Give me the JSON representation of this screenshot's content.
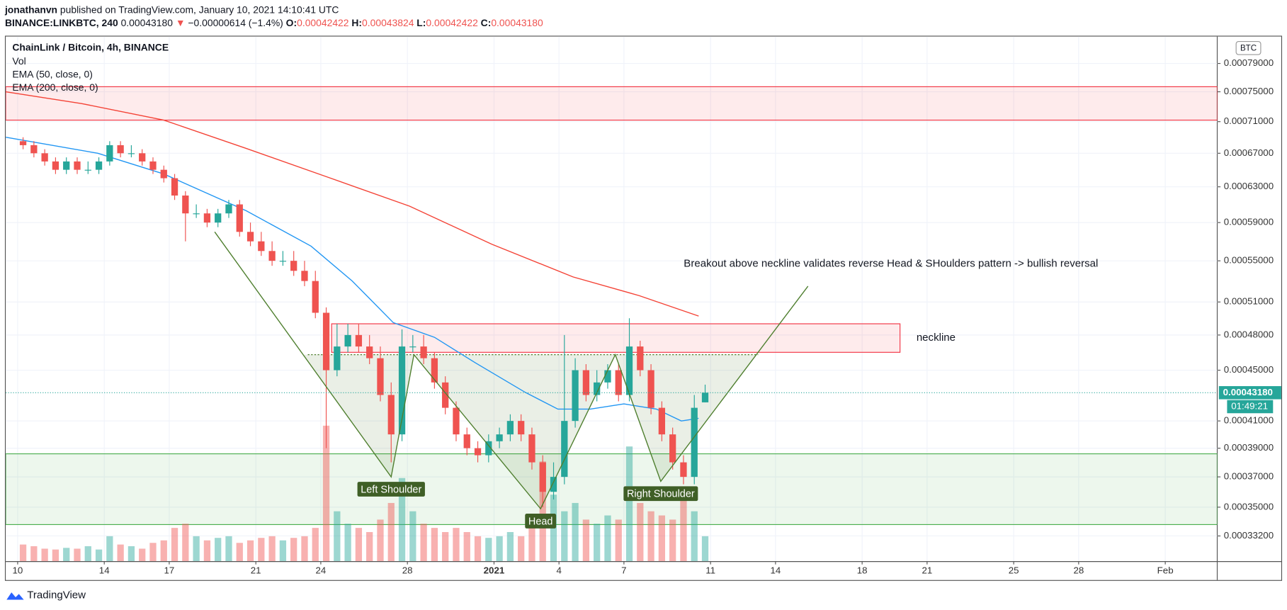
{
  "header": {
    "user": "jonathanvn",
    "published": "published on TradingView.com, January 10, 2021 14:10:41 UTC",
    "symbol": "BINANCE:LINKBTC, 240",
    "price": "0.00043180",
    "arrow": "▼",
    "change": "−0.00000614 (−1.4%)",
    "ohlc": [
      {
        "label": "O:",
        "value": "0.00042422"
      },
      {
        "label": "H:",
        "value": "0.00043824"
      },
      {
        "label": "L:",
        "value": "0.00042422"
      },
      {
        "label": "C:",
        "value": "0.00043180"
      }
    ]
  },
  "footer": {
    "brand": "TradingView"
  },
  "chart_data": {
    "type": "candlestick",
    "title": "ChainLink / Bitcoin, 4h, BINANCE",
    "log_scale": true,
    "grid": true,
    "up_color": "#26a69a",
    "down_color": "#ef5350",
    "currency": "BTC",
    "open": [
      0.000685,
      0.00068,
      0.00067,
      0.00066,
      0.00065,
      0.00066,
      0.00065,
      0.00065,
      0.00066,
      0.00068,
      0.00067,
      0.00067,
      0.00066,
      0.00065,
      0.00064,
      0.00062,
      0.0006,
      0.0006,
      0.00059,
      0.0006,
      0.00061,
      0.00058,
      0.00057,
      0.00056,
      0.00055,
      0.00055,
      0.00054,
      0.00053,
      0.0005,
      0.00045,
      0.00047,
      0.00048,
      0.00047,
      0.00046,
      0.00043,
      0.0004,
      0.00047,
      0.00047,
      0.00046,
      0.00044,
      0.00042,
      0.0004,
      0.00039,
      0.000385,
      0.000395,
      0.0004,
      0.00041,
      0.0004,
      0.00038,
      0.00036,
      0.00037,
      0.00041,
      0.00045,
      0.00043,
      0.00044,
      0.00045,
      0.00043,
      0.00047,
      0.00045,
      0.00042,
      0.0004,
      0.00038,
      0.00037,
      0.00042422
    ],
    "high": [
      0.00069,
      0.000685,
      0.000675,
      0.000665,
      0.000665,
      0.000665,
      0.00066,
      0.000665,
      0.000685,
      0.000685,
      0.00068,
      0.000675,
      0.000665,
      0.000655,
      0.000645,
      0.000625,
      0.00061,
      0.000605,
      0.000605,
      0.000615,
      0.000615,
      0.00059,
      0.00058,
      0.00057,
      0.00056,
      0.00056,
      0.00055,
      0.00054,
      0.000505,
      0.00049,
      0.00049,
      0.00049,
      0.00048,
      0.00047,
      0.00044,
      0.000485,
      0.00048,
      0.00048,
      0.000465,
      0.000445,
      0.000425,
      0.000405,
      0.000395,
      0.0004,
      0.000405,
      0.000415,
      0.000415,
      0.000405,
      0.000385,
      0.00038,
      0.00048,
      0.00046,
      0.000455,
      0.00045,
      0.000455,
      0.000455,
      0.000495,
      0.000475,
      0.000455,
      0.000425,
      0.000405,
      0.000385,
      0.00043,
      0.00043824
    ],
    "low": [
      0.000675,
      0.000665,
      0.000655,
      0.000645,
      0.000645,
      0.000645,
      0.000645,
      0.000645,
      0.000655,
      0.000665,
      0.000665,
      0.000655,
      0.000645,
      0.000635,
      0.000615,
      0.00057,
      0.000595,
      0.000585,
      0.000585,
      0.000595,
      0.000575,
      0.000565,
      0.000555,
      0.000545,
      0.000545,
      0.000535,
      0.000525,
      0.000495,
      0.00039,
      0.000445,
      0.000465,
      0.000465,
      0.000455,
      0.000425,
      0.00038,
      0.000395,
      0.000465,
      0.000455,
      0.000435,
      0.000415,
      0.000395,
      0.000385,
      0.00038,
      0.00038,
      0.00039,
      0.000395,
      0.000395,
      0.000375,
      0.00035,
      0.000355,
      0.000365,
      0.000405,
      0.000425,
      0.000425,
      0.000435,
      0.000425,
      0.000425,
      0.000445,
      0.000415,
      0.000395,
      0.000375,
      0.000365,
      0.000365,
      0.00042422
    ],
    "close": [
      0.00068,
      0.00067,
      0.00066,
      0.00065,
      0.00066,
      0.00065,
      0.00065,
      0.00066,
      0.00068,
      0.00067,
      0.00067,
      0.00066,
      0.00065,
      0.00064,
      0.00062,
      0.0006,
      0.0006,
      0.00059,
      0.0006,
      0.00061,
      0.00058,
      0.00057,
      0.00056,
      0.00055,
      0.00055,
      0.00054,
      0.00053,
      0.0005,
      0.00045,
      0.00047,
      0.00048,
      0.00047,
      0.00046,
      0.00043,
      0.0004,
      0.00047,
      0.00047,
      0.00046,
      0.00044,
      0.00042,
      0.0004,
      0.00039,
      0.000385,
      0.000395,
      0.0004,
      0.00041,
      0.0004,
      0.00038,
      0.00036,
      0.00037,
      0.00041,
      0.00045,
      0.00043,
      0.00044,
      0.00045,
      0.00043,
      0.00047,
      0.00045,
      0.00042,
      0.0004,
      0.00038,
      0.00037,
      0.00042,
      0.0004318
    ],
    "volume": {
      "name": "Vol",
      "values": [
        20,
        18,
        15,
        14,
        16,
        15,
        18,
        14,
        30,
        20,
        18,
        15,
        22,
        25,
        40,
        45,
        30,
        25,
        28,
        30,
        22,
        25,
        28,
        30,
        25,
        28,
        30,
        40,
        163,
        60,
        45,
        40,
        35,
        50,
        70,
        100,
        60,
        45,
        40,
        35,
        40,
        35,
        30,
        28,
        30,
        35,
        30,
        45,
        120,
        80,
        60,
        70,
        50,
        45,
        55,
        50,
        138,
        70,
        60,
        55,
        50,
        90,
        60,
        30
      ]
    },
    "series": [
      {
        "name": "EMA (50, close, 0)",
        "color": "#2196f3",
        "x": [
          -1.1,
          7.4,
          13.5,
          21.1,
          27.1,
          30.9,
          34.7,
          38.5,
          42.3,
          46.9,
          49.9,
          52.9,
          56,
          59,
          61.3,
          62.9
        ],
        "values": [
          0.00069,
          0.00067,
          0.000645,
          0.000603,
          0.000565,
          0.00053,
          0.000491,
          0.000478,
          0.000456,
          0.000432,
          0.000419,
          0.000419,
          0.000423,
          0.000419,
          0.00041,
          0.000412
        ]
      },
      {
        "name": "EMA (200, close, 0)",
        "color": "#f44336",
        "x": [
          -1.1,
          5.9,
          13.5,
          21.1,
          28.7,
          36.2,
          43.8,
          51.3,
          57.4,
          62.9
        ],
        "values": [
          0.00075,
          0.000734,
          0.000712,
          0.000676,
          0.000641,
          0.000608,
          0.000567,
          0.000534,
          0.000516,
          0.000497
        ]
      }
    ],
    "xlim": [
      -1.1,
      110.8
    ],
    "xticks": [
      {
        "value": 0,
        "label": "10"
      },
      {
        "value": 8,
        "label": "14"
      },
      {
        "value": 14,
        "label": "17"
      },
      {
        "value": 22,
        "label": "21"
      },
      {
        "value": 28,
        "label": "24"
      },
      {
        "value": 36,
        "label": "28"
      },
      {
        "value": 44,
        "label": "2021",
        "bold": true
      },
      {
        "value": 50,
        "label": "4"
      },
      {
        "value": 56,
        "label": "7"
      },
      {
        "value": 64,
        "label": "11"
      },
      {
        "value": 70,
        "label": "14"
      },
      {
        "value": 78,
        "label": "18"
      },
      {
        "value": 84,
        "label": "21"
      },
      {
        "value": 92,
        "label": "25"
      },
      {
        "value": 98,
        "label": "28"
      },
      {
        "value": 106,
        "label": "Feb"
      }
    ],
    "ylim": [
      0.000317,
      0.00083
    ],
    "yticks": [
      {
        "value": 0.00079,
        "label": "0.00079000"
      },
      {
        "value": 0.00075,
        "label": "0.00075000"
      },
      {
        "value": 0.00071,
        "label": "0.00071000"
      },
      {
        "value": 0.00067,
        "label": "0.00067000"
      },
      {
        "value": 0.00063,
        "label": "0.00063000"
      },
      {
        "value": 0.00059,
        "label": "0.00059000"
      },
      {
        "value": 0.00055,
        "label": "0.00055000"
      },
      {
        "value": 0.00051,
        "label": "0.00051000"
      },
      {
        "value": 0.00048,
        "label": "0.00048000"
      },
      {
        "value": 0.00045,
        "label": "0.00045000"
      },
      {
        "value": 0.00041,
        "label": "0.00041000"
      },
      {
        "value": 0.00039,
        "label": "0.00039000"
      },
      {
        "value": 0.00037,
        "label": "0.00037000"
      },
      {
        "value": 0.00035,
        "label": "0.00035000"
      },
      {
        "value": 0.000332,
        "label": "0.00033200"
      }
    ],
    "last_price": {
      "value": 0.0004318,
      "label": "0.00043180"
    },
    "countdown": "01:49:21",
    "zones": [
      {
        "color": "#f23645",
        "ylim": [
          0.000712,
          0.000757
        ]
      },
      {
        "color": "#f23645",
        "xlim": [
          29,
          81.5
        ],
        "ylim": [
          0.000465,
          0.00049
        ],
        "label": "neckline"
      },
      {
        "color": "#4caf50",
        "ylim": [
          0.000339,
          0.000386
        ]
      }
    ],
    "pattern": {
      "color": "#4f7f2f",
      "x": [
        18.2,
        34.5,
        36.6,
        48.3,
        55.2,
        59.4,
        73.0
      ],
      "values": [
        0.00058,
        0.00037,
        0.000463,
        0.000349,
        0.000463,
        0.000367,
        0.000525
      ],
      "neckline": {
        "x": [
          26.8,
          68.4
        ],
        "value": 0.000463
      },
      "labels": [
        "Left Shoulder",
        "Head",
        "Right Shoulder"
      ]
    },
    "annotation": "Breakout above neckline validates reverse Head & SHoulders pattern -> bullish reversal"
  }
}
